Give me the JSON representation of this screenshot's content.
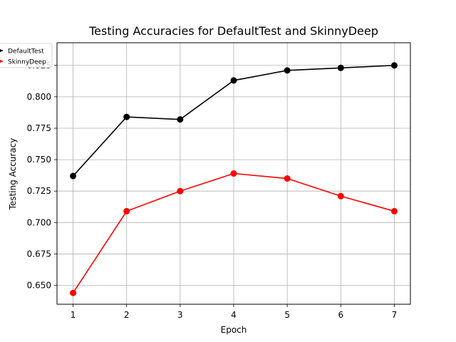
{
  "chart_data": {
    "type": "line",
    "title": "Testing Accuracies for DefaultTest and SkinnyDeep",
    "xlabel": "Epoch",
    "ylabel": "Testing Accuracy",
    "x": [
      1,
      2,
      3,
      4,
      5,
      6,
      7
    ],
    "xlim": [
      0.7,
      7.3
    ],
    "ylim": [
      0.635,
      0.843
    ],
    "yticks": [
      0.65,
      0.675,
      0.7,
      0.725,
      0.75,
      0.775,
      0.8,
      0.825
    ],
    "ytick_labels": [
      "0.650",
      "0.675",
      "0.700",
      "0.725",
      "0.750",
      "0.775",
      "0.800",
      "0.825"
    ],
    "xtick_labels": [
      "1",
      "2",
      "3",
      "4",
      "5",
      "6",
      "7"
    ],
    "grid": true,
    "legend_position": "top-left",
    "series": [
      {
        "name": "DefaultTest",
        "color": "#000000",
        "values": [
          0.737,
          0.784,
          0.782,
          0.813,
          0.821,
          0.823,
          0.825
        ]
      },
      {
        "name": "SkinnyDeep",
        "color": "#ff0000",
        "values": [
          0.644,
          0.709,
          0.725,
          0.739,
          0.735,
          0.721,
          0.709
        ]
      }
    ]
  }
}
